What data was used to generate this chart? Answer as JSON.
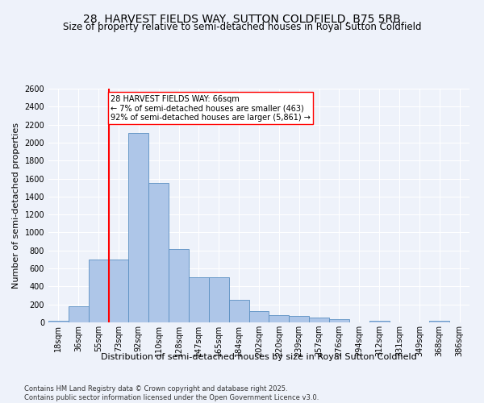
{
  "title": "28, HARVEST FIELDS WAY, SUTTON COLDFIELD, B75 5RB",
  "subtitle": "Size of property relative to semi-detached houses in Royal Sutton Coldfield",
  "xlabel": "Distribution of semi-detached houses by size in Royal Sutton Coldfield",
  "ylabel": "Number of semi-detached properties",
  "footer1": "Contains HM Land Registry data © Crown copyright and database right 2025.",
  "footer2": "Contains public sector information licensed under the Open Government Licence v3.0.",
  "categories": [
    "18sqm",
    "36sqm",
    "55sqm",
    "73sqm",
    "92sqm",
    "110sqm",
    "128sqm",
    "147sqm",
    "165sqm",
    "184sqm",
    "202sqm",
    "220sqm",
    "239sqm",
    "257sqm",
    "276sqm",
    "294sqm",
    "312sqm",
    "331sqm",
    "349sqm",
    "368sqm",
    "386sqm"
  ],
  "values": [
    20,
    175,
    700,
    700,
    2110,
    1555,
    820,
    505,
    505,
    250,
    125,
    80,
    70,
    55,
    35,
    0,
    20,
    0,
    0,
    20,
    0
  ],
  "bar_color": "#aec6e8",
  "bar_edge_color": "#5a8fc2",
  "subject_line_color": "red",
  "annotation_text": "28 HARVEST FIELDS WAY: 66sqm\n← 7% of semi-detached houses are smaller (463)\n92% of semi-detached houses are larger (5,861) →",
  "annotation_box_color": "white",
  "annotation_box_edge_color": "red",
  "ylim": [
    0,
    2600
  ],
  "yticks": [
    0,
    200,
    400,
    600,
    800,
    1000,
    1200,
    1400,
    1600,
    1800,
    2000,
    2200,
    2400,
    2600
  ],
  "bg_color": "#eef2fa",
  "plot_bg_color": "#eef2fa",
  "grid_color": "white",
  "title_fontsize": 10,
  "subtitle_fontsize": 8.5,
  "ylabel_fontsize": 8,
  "xlabel_fontsize": 8,
  "tick_fontsize": 7,
  "annotation_fontsize": 7,
  "footer_fontsize": 6
}
